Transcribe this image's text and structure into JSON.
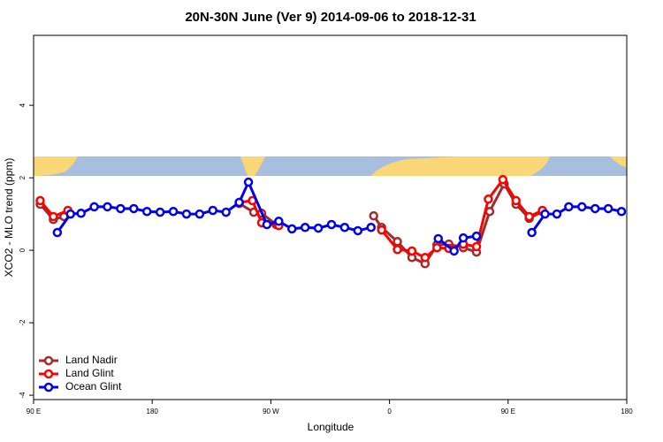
{
  "chart_data": {
    "type": "line",
    "title": "20N-30N June (Ver 9)   2014-09-06 to 2018-12-31",
    "x_label": "Longitude",
    "y_label": "XCO2 - MLO trend (ppm)",
    "xlim": [
      90,
      540
    ],
    "ylim": [
      -4.12,
      5.93
    ],
    "xticks": [
      {
        "value": 90,
        "label": "90 E"
      },
      180,
      {
        "value": 270,
        "label": "90 W"
      },
      {
        "value": 360,
        "label": "0"
      },
      {
        "value": 450,
        "label": "90 E"
      },
      {
        "value": 540,
        "label": "180"
      }
    ],
    "yticks": [
      -4,
      -2,
      0,
      2,
      4
    ],
    "legend": "bottom-left",
    "series": [
      {
        "name": "Land Nadir",
        "color": "#a52a2a",
        "x": [
          95,
          105,
          113,
          null,
          246,
          257,
          263,
          274,
          null,
          348,
          354,
          366,
          377,
          387,
          396,
          405,
          416,
          426,
          436,
          447,
          456,
          466,
          476
        ],
        "values": [
          1.27,
          0.85,
          0.93,
          null,
          1.29,
          1.05,
          1.02,
          0.71,
          null,
          0.95,
          0.63,
          0.24,
          -0.2,
          -0.37,
          0.15,
          0.17,
          0.07,
          -0.05,
          1.07,
          1.83,
          1.27,
          0.88,
          1.07
        ]
      },
      {
        "name": "Land Glint",
        "color": "#ff0000",
        "x": [
          95,
          105,
          116,
          null,
          246,
          256,
          263,
          276,
          null,
          354,
          366,
          377,
          387,
          396,
          405,
          416,
          426,
          435,
          446,
          456,
          466,
          476
        ],
        "values": [
          1.37,
          0.93,
          1.1,
          null,
          1.32,
          1.37,
          0.76,
          0.68,
          null,
          0.56,
          0.02,
          -0.02,
          -0.2,
          0.07,
          0.05,
          0.17,
          0.1,
          1.41,
          1.95,
          1.37,
          0.93,
          1.1
        ]
      },
      {
        "name": "Ocean Glint",
        "color": "#0000ee",
        "x": [
          108,
          118,
          126,
          136,
          146,
          156,
          166,
          176,
          186,
          196,
          206,
          216,
          226,
          236,
          246,
          253,
          267,
          276,
          286,
          296,
          306,
          316,
          326,
          336,
          346,
          null,
          397,
          409,
          416,
          426,
          null,
          468,
          478,
          487,
          496,
          506,
          516,
          526,
          536
        ],
        "values": [
          0.49,
          1.0,
          1.02,
          1.2,
          1.2,
          1.15,
          1.15,
          1.07,
          1.05,
          1.07,
          1.0,
          1.0,
          1.1,
          1.05,
          1.32,
          1.88,
          0.71,
          0.8,
          0.59,
          0.63,
          0.61,
          0.71,
          0.63,
          0.54,
          0.63,
          null,
          0.32,
          -0.02,
          0.34,
          0.39,
          null,
          0.49,
          1.0,
          1.0,
          1.2,
          1.2,
          1.15,
          1.15,
          1.07
        ]
      }
    ]
  }
}
